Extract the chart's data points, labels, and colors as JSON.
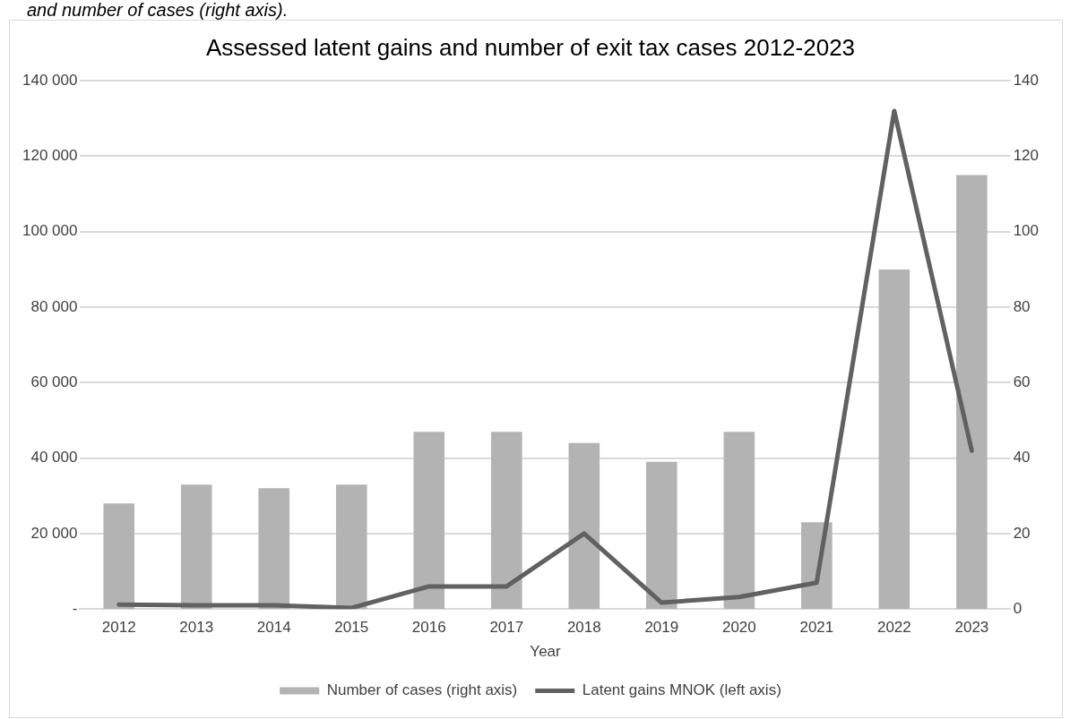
{
  "chart_data": {
    "type": "bar",
    "title": "Assessed latent gains and number of exit tax cases 2012-2023",
    "annotations": [
      "and number of cases (right axis)."
    ],
    "xlabel": "Year",
    "categories": [
      "2012",
      "2013",
      "2014",
      "2015",
      "2016",
      "2017",
      "2018",
      "2019",
      "2020",
      "2021",
      "2022",
      "2023"
    ],
    "series": [
      {
        "name": "Number of cases (right axis)",
        "axis": "y2",
        "color": "#b3b3b3",
        "values": [
          28,
          33,
          32,
          33,
          47,
          47,
          44,
          39,
          47,
          23,
          90,
          115
        ]
      },
      {
        "name": "Latent gains MNOK (left axis)",
        "type": "line",
        "axis": "y",
        "color": "#616161",
        "values": [
          1200,
          1000,
          1000,
          300,
          6000,
          6000,
          20000,
          1700,
          3200,
          7000,
          132000,
          42000
        ]
      }
    ],
    "ylim": [
      0,
      140000
    ],
    "yticks": [
      {
        "value": 0,
        "label": "-"
      },
      {
        "value": 20000,
        "label": "20 000"
      },
      {
        "value": 40000,
        "label": "40 000"
      },
      {
        "value": 60000,
        "label": "60 000"
      },
      {
        "value": 80000,
        "label": "80 000"
      },
      {
        "value": 100000,
        "label": "100 000"
      },
      {
        "value": 120000,
        "label": "120 000"
      },
      {
        "value": 140000,
        "label": "140 000"
      }
    ],
    "y2lim": [
      0,
      140
    ],
    "y2ticks": [
      0,
      20,
      40,
      60,
      80,
      100,
      120,
      140
    ],
    "grid": "y",
    "legend": "bottom",
    "marker": "none"
  }
}
